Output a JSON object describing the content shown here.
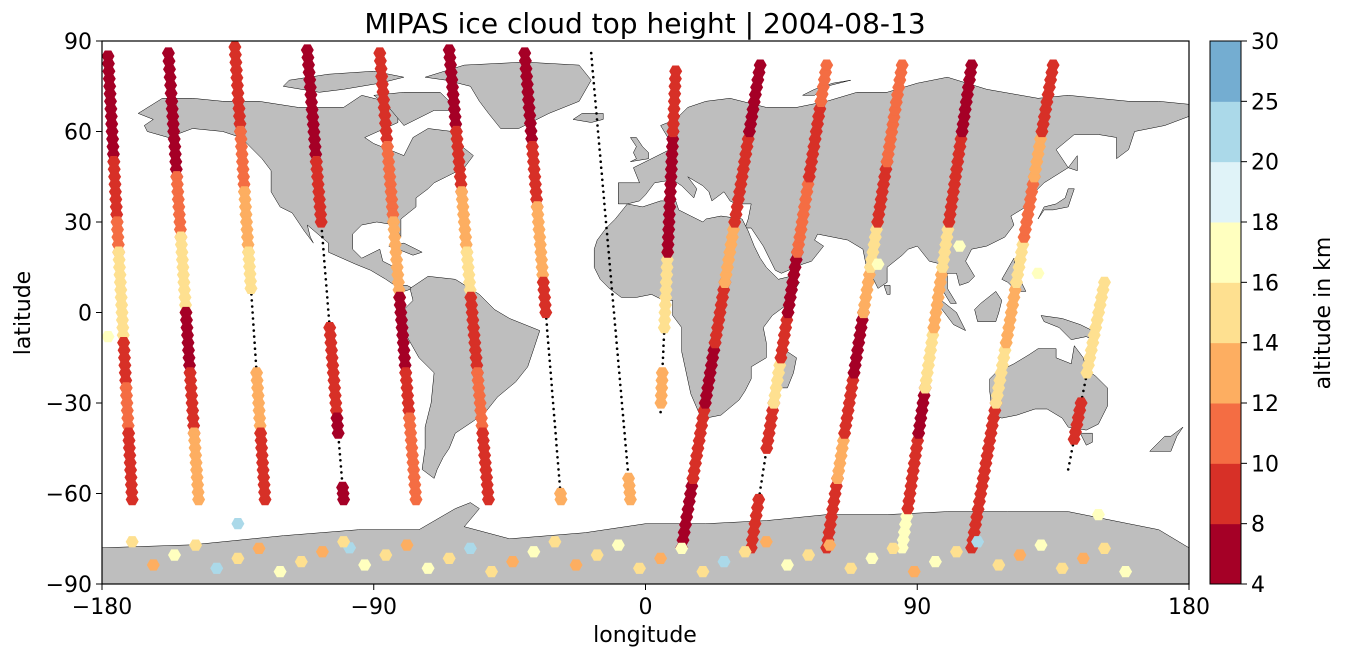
{
  "chart_data": {
    "type": "scatter",
    "title": "MIPAS ice cloud top height | 2004-08-13",
    "xlabel": "longitude",
    "ylabel": "latitude",
    "xlim": [
      -180,
      180
    ],
    "ylim": [
      -90,
      90
    ],
    "x_tick_labels": [
      "−180",
      "−90",
      "0",
      "90",
      "180"
    ],
    "x_tick_values": [
      -180,
      -90,
      0,
      90,
      180
    ],
    "y_tick_labels": [
      "−90",
      "−60",
      "−30",
      "0",
      "30",
      "60",
      "90"
    ],
    "y_tick_values": [
      -90,
      -60,
      -30,
      0,
      30,
      60,
      90
    ],
    "background_map": "world coastlines, land shaded grey",
    "colorbar": {
      "label": "altitude in km",
      "boundaries": [
        4,
        8,
        10,
        12,
        14,
        16,
        18,
        20,
        25,
        30
      ],
      "tick_labels": [
        "4",
        "8",
        "10",
        "12",
        "14",
        "16",
        "18",
        "20",
        "25",
        "30"
      ],
      "colors": [
        "#a50026",
        "#d73027",
        "#f46d43",
        "#fdae61",
        "#fee090",
        "#ffffbf",
        "#e0f3f8",
        "#abd9e9",
        "#74add1",
        "#313695"
      ]
    },
    "markers": {
      "cloud": "hexagon",
      "no_cloud": "small black dot"
    },
    "colors": {
      "land": "#bebebe",
      "ocean": "#ffffff",
      "track": "#000000"
    },
    "tracks": [
      {
        "start": [
          -178,
          85
        ],
        "end": [
          -170,
          -62
        ],
        "cloud_segments": [
          {
            "lat": [
              85,
              50
            ],
            "h": 7
          },
          {
            "lat": [
              50,
              30
            ],
            "h": 9
          },
          {
            "lat": [
              30,
              20
            ],
            "h": 11
          },
          {
            "lat": [
              20,
              -10
            ],
            "h": 15
          },
          {
            "lat": [
              -10,
              -25
            ],
            "h": 9
          },
          {
            "lat": [
              -25,
              -40
            ],
            "h": 11
          },
          {
            "lat": [
              -40,
              -62
            ],
            "h": 9
          }
        ]
      },
      {
        "start": [
          -158,
          86
        ],
        "end": [
          -148,
          -62
        ],
        "cloud_segments": [
          {
            "lat": [
              86,
              70
            ],
            "h": 7
          },
          {
            "lat": [
              70,
              45
            ],
            "h": 7
          },
          {
            "lat": [
              45,
              25
            ],
            "h": 11
          },
          {
            "lat": [
              25,
              0
            ],
            "h": 15
          },
          {
            "lat": [
              0,
              -20
            ],
            "h": 7
          },
          {
            "lat": [
              -20,
              -40
            ],
            "h": 9
          },
          {
            "lat": [
              -40,
              -62
            ],
            "h": 13
          }
        ]
      },
      {
        "start": [
          -136,
          88
        ],
        "end": [
          -126,
          -62
        ],
        "cloud_segments": [
          {
            "lat": [
              88,
              60
            ],
            "h": 9
          },
          {
            "lat": [
              60,
              40
            ],
            "h": 11
          },
          {
            "lat": [
              40,
              20
            ],
            "h": 13
          },
          {
            "lat": [
              20,
              8
            ],
            "h": 15
          },
          {
            "lat": [
              -20,
              -40
            ],
            "h": 13
          },
          {
            "lat": [
              -40,
              -62
            ],
            "h": 9
          }
        ]
      },
      {
        "start": [
          -112,
          87
        ],
        "end": [
          -100,
          -62
        ],
        "cloud_segments": [
          {
            "lat": [
              87,
              50
            ],
            "h": 7
          },
          {
            "lat": [
              50,
              30
            ],
            "h": 9
          },
          {
            "lat": [
              -5,
              -35
            ],
            "h": 9
          },
          {
            "lat": [
              -35,
              -40
            ],
            "h": 7
          },
          {
            "lat": [
              -58,
              -62
            ],
            "h": 7
          }
        ]
      },
      {
        "start": [
          -88,
          86
        ],
        "end": [
          -76,
          -62
        ],
        "cloud_segments": [
          {
            "lat": [
              86,
              55
            ],
            "h": 9
          },
          {
            "lat": [
              55,
              30
            ],
            "h": 11
          },
          {
            "lat": [
              30,
              5
            ],
            "h": 13
          },
          {
            "lat": [
              5,
              -20
            ],
            "h": 7
          },
          {
            "lat": [
              -20,
              -35
            ],
            "h": 9
          },
          {
            "lat": [
              -35,
              -62
            ],
            "h": 11
          }
        ]
      },
      {
        "start": [
          -65,
          87
        ],
        "end": [
          -52,
          -62
        ],
        "cloud_segments": [
          {
            "lat": [
              87,
              60
            ],
            "h": 7
          },
          {
            "lat": [
              60,
              40
            ],
            "h": 9
          },
          {
            "lat": [
              40,
              20
            ],
            "h": 13
          },
          {
            "lat": [
              20,
              5
            ],
            "h": 15
          },
          {
            "lat": [
              5,
              -20
            ],
            "h": 9
          },
          {
            "lat": [
              -20,
              -40
            ],
            "h": 11
          },
          {
            "lat": [
              -40,
              -62
            ],
            "h": 9
          }
        ]
      },
      {
        "start": [
          -40,
          86
        ],
        "end": [
          -28,
          -62
        ],
        "cloud_segments": [
          {
            "lat": [
              86,
              55
            ],
            "h": 7
          },
          {
            "lat": [
              55,
              35
            ],
            "h": 9
          },
          {
            "lat": [
              35,
              10
            ],
            "h": 13
          },
          {
            "lat": [
              10,
              0
            ],
            "h": 9
          },
          {
            "lat": [
              -60,
              -62
            ],
            "h": 13
          }
        ]
      },
      {
        "start": [
          -18,
          86
        ],
        "end": [
          -5,
          -62
        ],
        "cloud_segments": [
          {
            "lat": [
              -55,
              -62
            ],
            "h": 13
          }
        ]
      },
      {
        "start": [
          5,
          -33
        ],
        "end": [
          10,
          80
        ],
        "cloud_segments": [
          {
            "lat": [
              -30,
              -20
            ],
            "h": 13
          },
          {
            "lat": [
              -5,
              20
            ],
            "h": 15
          },
          {
            "lat": [
              20,
              60
            ],
            "h": 7
          },
          {
            "lat": [
              60,
              80
            ],
            "h": 9
          }
        ]
      },
      {
        "start": [
          12,
          -78
        ],
        "end": [
          38,
          82
        ],
        "cloud_segments": [
          {
            "lat": [
              -78,
              -55
            ],
            "h": 7
          },
          {
            "lat": [
              -55,
              -30
            ],
            "h": 9
          },
          {
            "lat": [
              -30,
              -10
            ],
            "h": 7
          },
          {
            "lat": [
              -10,
              10
            ],
            "h": 9
          },
          {
            "lat": [
              10,
              30
            ],
            "h": 13
          },
          {
            "lat": [
              30,
              60
            ],
            "h": 9
          },
          {
            "lat": [
              60,
              82
            ],
            "h": 7
          }
        ]
      },
      {
        "start": [
          35,
          -78
        ],
        "end": [
          60,
          82
        ],
        "cloud_segments": [
          {
            "lat": [
              -78,
              -62
            ],
            "h": 9
          },
          {
            "lat": [
              -45,
              -30
            ],
            "h": 9
          },
          {
            "lat": [
              -30,
              -15
            ],
            "h": 15
          },
          {
            "lat": [
              -15,
              0
            ],
            "h": 9
          },
          {
            "lat": [
              0,
              20
            ],
            "h": 7
          },
          {
            "lat": [
              20,
              45
            ],
            "h": 11
          },
          {
            "lat": [
              45,
              70
            ],
            "h": 9
          },
          {
            "lat": [
              70,
              82
            ],
            "h": 11
          }
        ]
      },
      {
        "start": [
          60,
          -78
        ],
        "end": [
          85,
          82
        ],
        "cloud_segments": [
          {
            "lat": [
              -78,
              -55
            ],
            "h": 9
          },
          {
            "lat": [
              -55,
              -40
            ],
            "h": 13
          },
          {
            "lat": [
              -40,
              -20
            ],
            "h": 9
          },
          {
            "lat": [
              -20,
              0
            ],
            "h": 7
          },
          {
            "lat": [
              0,
              15
            ],
            "h": 13
          },
          {
            "lat": [
              15,
              30
            ],
            "h": 15
          },
          {
            "lat": [
              30,
              50
            ],
            "h": 9
          },
          {
            "lat": [
              50,
              82
            ],
            "h": 11
          }
        ]
      },
      {
        "start": [
          85,
          -78
        ],
        "end": [
          108,
          82
        ],
        "cloud_segments": [
          {
            "lat": [
              -78,
              -65
            ],
            "h": 17
          },
          {
            "lat": [
              -65,
              -40
            ],
            "h": 9
          },
          {
            "lat": [
              -40,
              -25
            ],
            "h": 7
          },
          {
            "lat": [
              -25,
              -5
            ],
            "h": 15
          },
          {
            "lat": [
              -5,
              15
            ],
            "h": 13
          },
          {
            "lat": [
              15,
              30
            ],
            "h": 15
          },
          {
            "lat": [
              30,
              60
            ],
            "h": 9
          },
          {
            "lat": [
              60,
              82
            ],
            "h": 7
          }
        ]
      },
      {
        "start": [
          108,
          -78
        ],
        "end": [
          135,
          82
        ],
        "cloud_segments": [
          {
            "lat": [
              -78,
              -55
            ],
            "h": 9
          },
          {
            "lat": [
              -55,
              -30
            ],
            "h": 9
          },
          {
            "lat": [
              -30,
              -10
            ],
            "h": 15
          },
          {
            "lat": [
              -10,
              10
            ],
            "h": 13
          },
          {
            "lat": [
              10,
              25
            ],
            "h": 15
          },
          {
            "lat": [
              25,
              45
            ],
            "h": 11
          },
          {
            "lat": [
              45,
              60
            ],
            "h": 13
          },
          {
            "lat": [
              60,
              82
            ],
            "h": 9
          }
        ]
      },
      {
        "start": [
          140,
          -52
        ],
        "end": [
          152,
          10
        ],
        "cloud_segments": [
          {
            "lat": [
              -42,
              -30
            ],
            "h": 9
          },
          {
            "lat": [
              -20,
              10
            ],
            "h": 15
          }
        ]
      }
    ],
    "extra_points": [
      {
        "lon": -178,
        "lat": -8,
        "h": 17
      },
      {
        "lon": -135,
        "lat": -70,
        "h": 22
      },
      {
        "lon": -98,
        "lat": -78,
        "h": 22
      },
      {
        "lon": 150,
        "lat": -67,
        "h": 17
      },
      {
        "lon": 104,
        "lat": 22,
        "h": 17
      },
      {
        "lon": 130,
        "lat": 13,
        "h": 17
      },
      {
        "lon": 77,
        "lat": 16,
        "h": 17
      }
    ],
    "antarctic_band": {
      "lat": [
        -76,
        -87
      ],
      "lon_step": 7,
      "heights_cycle": [
        15,
        13,
        17,
        15,
        22,
        15,
        13,
        17,
        15,
        13,
        15,
        17
      ]
    }
  }
}
